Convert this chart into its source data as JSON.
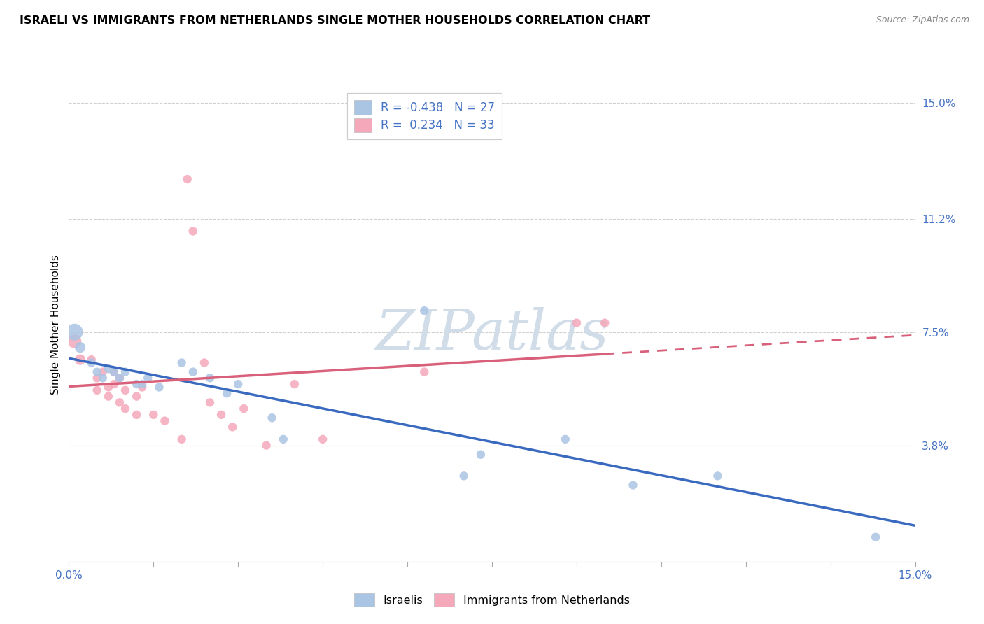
{
  "title": "ISRAELI VS IMMIGRANTS FROM NETHERLANDS SINGLE MOTHER HOUSEHOLDS CORRELATION CHART",
  "source": "Source: ZipAtlas.com",
  "ylabel": "Single Mother Households",
  "xlim": [
    0.0,
    0.15
  ],
  "ylim": [
    0.0,
    0.155
  ],
  "ytick_vals": [
    0.0,
    0.038,
    0.075,
    0.112,
    0.15
  ],
  "ytick_labels": [
    "",
    "3.8%",
    "7.5%",
    "11.2%",
    "15.0%"
  ],
  "r_israeli": -0.438,
  "n_israeli": 27,
  "r_netherlands": 0.234,
  "n_netherlands": 33,
  "israeli_color": "#aac4e3",
  "netherlands_color": "#f4a8ba",
  "trendline_israeli_color": "#3a6abf",
  "trendline_netherlands_color": "#d9607a",
  "israeli_points": [
    [
      0.001,
      0.075,
      300
    ],
    [
      0.002,
      0.07,
      120
    ],
    [
      0.004,
      0.065,
      80
    ],
    [
      0.005,
      0.062,
      80
    ],
    [
      0.006,
      0.06,
      80
    ],
    [
      0.007,
      0.063,
      80
    ],
    [
      0.008,
      0.062,
      80
    ],
    [
      0.009,
      0.06,
      80
    ],
    [
      0.01,
      0.062,
      80
    ],
    [
      0.012,
      0.058,
      80
    ],
    [
      0.013,
      0.058,
      80
    ],
    [
      0.014,
      0.06,
      80
    ],
    [
      0.016,
      0.057,
      80
    ],
    [
      0.02,
      0.065,
      80
    ],
    [
      0.022,
      0.062,
      80
    ],
    [
      0.025,
      0.06,
      80
    ],
    [
      0.028,
      0.055,
      80
    ],
    [
      0.03,
      0.058,
      80
    ],
    [
      0.036,
      0.047,
      80
    ],
    [
      0.038,
      0.04,
      80
    ],
    [
      0.063,
      0.082,
      80
    ],
    [
      0.07,
      0.028,
      80
    ],
    [
      0.073,
      0.035,
      80
    ],
    [
      0.088,
      0.04,
      80
    ],
    [
      0.1,
      0.025,
      80
    ],
    [
      0.115,
      0.028,
      80
    ],
    [
      0.143,
      0.008,
      80
    ]
  ],
  "netherlands_points": [
    [
      0.001,
      0.072,
      200
    ],
    [
      0.002,
      0.066,
      120
    ],
    [
      0.004,
      0.066,
      80
    ],
    [
      0.005,
      0.06,
      80
    ],
    [
      0.005,
      0.056,
      80
    ],
    [
      0.006,
      0.062,
      80
    ],
    [
      0.007,
      0.057,
      80
    ],
    [
      0.007,
      0.054,
      80
    ],
    [
      0.008,
      0.062,
      80
    ],
    [
      0.008,
      0.058,
      80
    ],
    [
      0.009,
      0.06,
      80
    ],
    [
      0.009,
      0.052,
      80
    ],
    [
      0.01,
      0.056,
      80
    ],
    [
      0.01,
      0.05,
      80
    ],
    [
      0.012,
      0.054,
      80
    ],
    [
      0.012,
      0.048,
      80
    ],
    [
      0.013,
      0.057,
      80
    ],
    [
      0.015,
      0.048,
      80
    ],
    [
      0.017,
      0.046,
      80
    ],
    [
      0.02,
      0.04,
      80
    ],
    [
      0.021,
      0.125,
      80
    ],
    [
      0.022,
      0.108,
      80
    ],
    [
      0.024,
      0.065,
      80
    ],
    [
      0.025,
      0.052,
      80
    ],
    [
      0.027,
      0.048,
      80
    ],
    [
      0.029,
      0.044,
      80
    ],
    [
      0.031,
      0.05,
      80
    ],
    [
      0.035,
      0.038,
      80
    ],
    [
      0.04,
      0.058,
      80
    ],
    [
      0.045,
      0.04,
      80
    ],
    [
      0.063,
      0.062,
      80
    ],
    [
      0.09,
      0.078,
      80
    ],
    [
      0.095,
      0.078,
      80
    ]
  ],
  "watermark_text": "ZIPatlas",
  "watermark_color": "#d0dce8",
  "grid_color": "#d0d0d0"
}
